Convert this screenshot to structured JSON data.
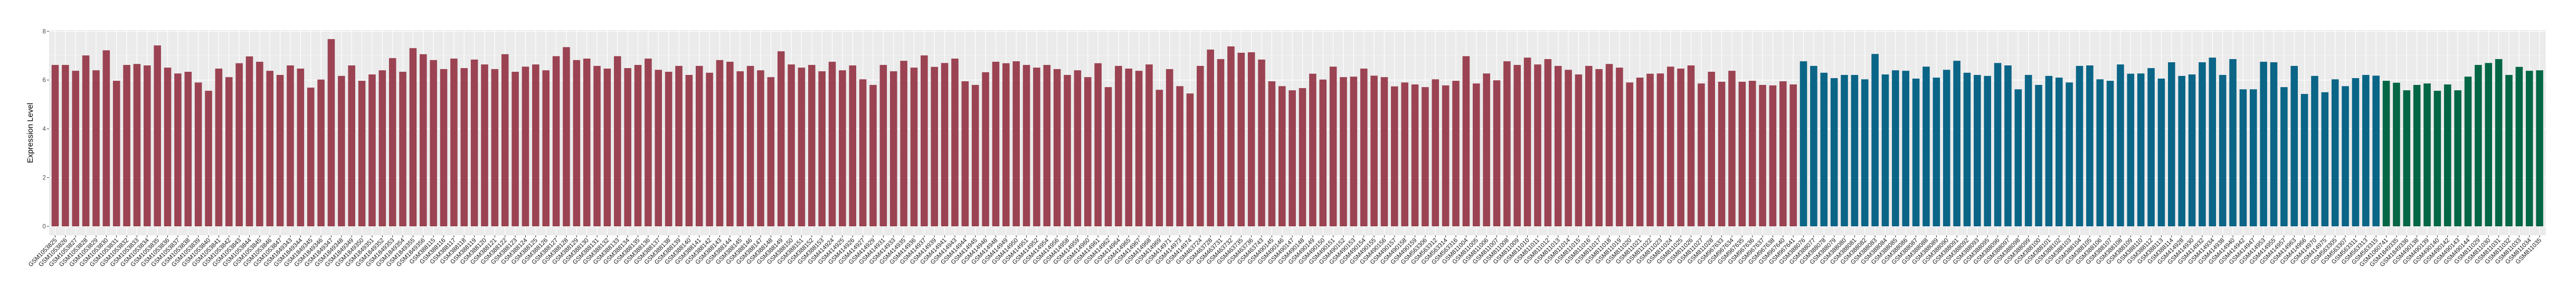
{
  "chart_data": {
    "type": "bar",
    "title": "",
    "xlabel": "",
    "ylabel": "Expression Level",
    "ylim": [
      0,
      8
    ],
    "y_ticks": [
      0,
      2,
      4,
      6,
      8
    ],
    "grid": true,
    "legend": "none",
    "panel_background": "#EBEBEB",
    "series": [
      {
        "color": "#9B4352",
        "categories": [
          "GSM1053825",
          "GSM1053826",
          "GSM1053827",
          "GSM1053828",
          "GSM1053829",
          "GSM1053830",
          "GSM1053831",
          "GSM1053832",
          "GSM1053833",
          "GSM1053834",
          "GSM1053835",
          "GSM1053836",
          "GSM1053837",
          "GSM1053838",
          "GSM1053839",
          "GSM1053840",
          "GSM1053841",
          "GSM1053842",
          "GSM1053843",
          "GSM1053844",
          "GSM1053845",
          "GSM1053846",
          "GSM1053847",
          "GSM1849343",
          "GSM1849344",
          "GSM1849345",
          "GSM1849346",
          "GSM1849347",
          "GSM1849348",
          "GSM1849349",
          "GSM1849350",
          "GSM1849351",
          "GSM1849352",
          "GSM1849353",
          "GSM1849354",
          "GSM1849355",
          "GSM1849356",
          "GSM388115",
          "GSM388116",
          "GSM388117",
          "GSM388118",
          "GSM388119",
          "GSM388120",
          "GSM388121",
          "GSM388122",
          "GSM388123",
          "GSM388124",
          "GSM388125",
          "GSM388126",
          "GSM388127",
          "GSM388128",
          "GSM388129",
          "GSM388130",
          "GSM388131",
          "GSM388132",
          "GSM388133",
          "GSM388134",
          "GSM388135",
          "GSM388136",
          "GSM388137",
          "GSM388138",
          "GSM388139",
          "GSM388140",
          "GSM388141",
          "GSM388142",
          "GSM388143",
          "GSM388144",
          "GSM388145",
          "GSM388146",
          "GSM388147",
          "GSM388148",
          "GSM388149",
          "GSM388150",
          "GSM388151",
          "GSM388152",
          "GSM388153",
          "GSM414924",
          "GSM414925",
          "GSM414926",
          "GSM414927",
          "GSM414929",
          "GSM414931",
          "GSM414933",
          "GSM414935",
          "GSM414936",
          "GSM414937",
          "GSM414939",
          "GSM414941",
          "GSM414943",
          "GSM414944",
          "GSM414945",
          "GSM414946",
          "GSM414948",
          "GSM414949",
          "GSM414950",
          "GSM414951",
          "GSM414952",
          "GSM414954",
          "GSM414956",
          "GSM414958",
          "GSM414959",
          "GSM414960",
          "GSM414961",
          "GSM414962",
          "GSM414964",
          "GSM414965",
          "GSM414967",
          "GSM414968",
          "GSM414969",
          "GSM414971",
          "GSM414973",
          "GSM414974",
          "GSM463724",
          "GSM463728",
          "GSM463731",
          "GSM463732",
          "GSM463735",
          "GSM463736",
          "GSM463743",
          "GSM490145",
          "GSM490146",
          "GSM490147",
          "GSM490148",
          "GSM490149",
          "GSM490150",
          "GSM490151",
          "GSM490152",
          "GSM490153",
          "GSM490154",
          "GSM490155",
          "GSM490156",
          "GSM490157",
          "GSM490158",
          "GSM490159",
          "GSM563306",
          "GSM563312",
          "GSM563314",
          "GSM563316",
          "GSM811004",
          "GSM811005",
          "GSM811006",
          "GSM811007",
          "GSM811008",
          "GSM811009",
          "GSM811010",
          "GSM811011",
          "GSM811012",
          "GSM811013",
          "GSM811014",
          "GSM811015",
          "GSM811016",
          "GSM811017",
          "GSM811018",
          "GSM811019",
          "GSM811020",
          "GSM811021",
          "GSM811022",
          "GSM811023",
          "GSM811024",
          "GSM811025",
          "GSM811026",
          "GSM811027",
          "GSM811028",
          "GSM967633",
          "GSM967634",
          "GSM967635",
          "GSM967636",
          "GSM967637",
          "GSM967638",
          "GSM967640",
          "GSM967641"
        ],
        "values": [
          6.62,
          6.62,
          6.38,
          7.01,
          6.4,
          7.22,
          5.97,
          6.62,
          6.66,
          6.6,
          7.42,
          6.51,
          6.27,
          6.34,
          5.9,
          5.56,
          6.47,
          6.12,
          6.69,
          6.97,
          6.75,
          6.38,
          6.21,
          6.6,
          6.47,
          5.69,
          6.02,
          7.68,
          6.17,
          6.6,
          5.97,
          6.23,
          6.4,
          6.9,
          6.34,
          7.31,
          7.06,
          6.82,
          6.45,
          6.88,
          6.49,
          6.84,
          6.64,
          6.45,
          7.06,
          6.34,
          6.55,
          6.64,
          6.4,
          6.98,
          7.35,
          6.82,
          6.88,
          6.58,
          6.47,
          6.98,
          6.49,
          6.62,
          6.88,
          6.42,
          6.34,
          6.58,
          6.21,
          6.58,
          6.3,
          6.82,
          6.75,
          6.36,
          6.58,
          6.4,
          6.12,
          7.18,
          6.64,
          6.51,
          6.62,
          6.36,
          6.75,
          6.4,
          6.6,
          6.03,
          5.8,
          6.62,
          6.36,
          6.79,
          6.51,
          7.01,
          6.54,
          6.7,
          6.88,
          5.95,
          5.8,
          6.32,
          6.75,
          6.69,
          6.77,
          6.62,
          6.51,
          6.62,
          6.45,
          6.21,
          6.4,
          6.12,
          6.69,
          5.71,
          6.58,
          6.47,
          6.38,
          6.64,
          5.6,
          6.45,
          5.75,
          5.45,
          6.58,
          7.25,
          6.86,
          7.38,
          7.12,
          7.14,
          6.84,
          5.95,
          5.75,
          5.58,
          5.67,
          6.26,
          6.02,
          6.55,
          6.12,
          6.14,
          6.47,
          6.18,
          6.12,
          5.74,
          5.9,
          5.82,
          5.71,
          6.03,
          5.78,
          5.97,
          6.98,
          5.86,
          6.27,
          5.99,
          6.77,
          6.62,
          6.92,
          6.64,
          6.86,
          6.58,
          6.42,
          6.23,
          6.58,
          6.45,
          6.66,
          6.51,
          5.9,
          6.1,
          6.26,
          6.27,
          6.55,
          6.47,
          6.6,
          5.86,
          6.34,
          5.93,
          6.38,
          5.93,
          5.97,
          5.8,
          5.78,
          5.95,
          5.82
        ]
      },
      {
        "color": "#0A6587",
        "categories": [
          "GSM388076",
          "GSM388077",
          "GSM388078",
          "GSM388079",
          "GSM388080",
          "GSM388081",
          "GSM388082",
          "GSM388083",
          "GSM388084",
          "GSM388085",
          "GSM388086",
          "GSM388087",
          "GSM388088",
          "GSM388089",
          "GSM388090",
          "GSM388091",
          "GSM388092",
          "GSM388093",
          "GSM388095",
          "GSM388096",
          "GSM388097",
          "GSM388098",
          "GSM388099",
          "GSM388100",
          "GSM388101",
          "GSM388102",
          "GSM388103",
          "GSM388104",
          "GSM388105",
          "GSM388106",
          "GSM388107",
          "GSM388108",
          "GSM388109",
          "GSM388110",
          "GSM388112",
          "GSM388113",
          "GSM388114",
          "GSM414928",
          "GSM414930",
          "GSM414932",
          "GSM414934",
          "GSM414938",
          "GSM414940",
          "GSM414942",
          "GSM414947",
          "GSM414953",
          "GSM414955",
          "GSM414957",
          "GSM414963",
          "GSM414966",
          "GSM414970",
          "GSM414975",
          "GSM563305",
          "GSM563307",
          "GSM563311",
          "GSM563313",
          "GSM563315"
        ],
        "values": [
          6.77,
          6.58,
          6.3,
          6.08,
          6.21,
          6.21,
          6.03,
          7.07,
          6.23,
          6.4,
          6.38,
          6.06,
          6.55,
          6.1,
          6.42,
          6.79,
          6.3,
          6.21,
          6.17,
          6.7,
          6.6,
          5.62,
          6.21,
          5.8,
          6.17,
          6.1,
          5.9,
          6.58,
          6.6,
          6.03,
          5.97,
          6.64,
          6.26,
          6.27,
          6.49,
          6.06,
          6.73,
          6.17,
          6.23,
          6.73,
          6.92,
          6.21,
          6.86,
          5.62,
          5.62,
          6.75,
          6.73,
          5.71,
          6.58,
          5.43,
          6.17,
          5.5,
          6.03,
          5.75,
          6.08,
          6.21,
          6.18
        ]
      },
      {
        "color": "#036645",
        "categories": [
          "GSM1060741",
          "GSM1849335",
          "GSM1849336",
          "GSM490138",
          "GSM490139",
          "GSM490140",
          "GSM490142",
          "GSM490143",
          "GSM490144",
          "GSM811029",
          "GSM811030",
          "GSM811031",
          "GSM811032",
          "GSM811033",
          "GSM811034",
          "GSM811035"
        ],
        "values": [
          5.97,
          5.89,
          5.58,
          5.8,
          5.86,
          5.56,
          5.82,
          5.58,
          6.14,
          6.62,
          6.7,
          6.86,
          6.21,
          6.54,
          6.38,
          6.4
        ]
      }
    ]
  }
}
